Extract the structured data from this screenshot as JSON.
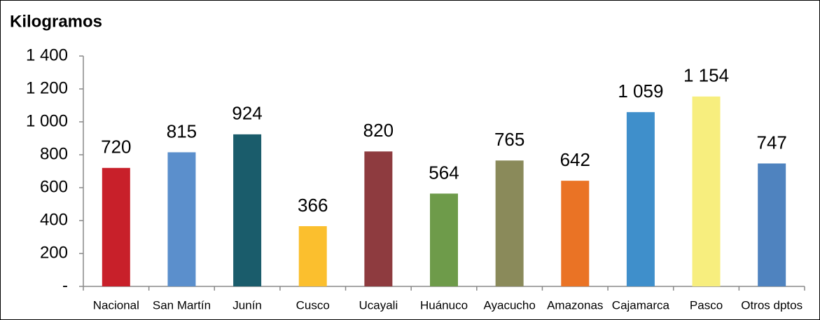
{
  "chart_data": {
    "type": "bar",
    "title": "Kilogramos",
    "categories": [
      "Nacional",
      "San Martín",
      "Junín",
      "Cusco",
      "Ucayali",
      "Huánuco",
      "Ayacucho",
      "Amazonas",
      "Cajamarca",
      "Pasco",
      "Otros dptos"
    ],
    "values": [
      720,
      815,
      924,
      366,
      820,
      564,
      765,
      642,
      1059,
      1154,
      747
    ],
    "value_labels": [
      "720",
      "815",
      "924",
      "366",
      "820",
      "564",
      "765",
      "642",
      "1 059",
      "1 154",
      "747"
    ],
    "colors": [
      "#c8202a",
      "#5b8fcc",
      "#1a5c6b",
      "#fbbf2e",
      "#8e3b3f",
      "#6e9b4a",
      "#8a8a5a",
      "#ea7325",
      "#3f8fcb",
      "#f7ee7e",
      "#4f83bf"
    ],
    "ylim": [
      0,
      1400
    ],
    "yticks": [
      {
        "value": 0,
        "label": "-"
      },
      200,
      400,
      600,
      800,
      {
        "value": 1000,
        "label": "1 000"
      },
      {
        "value": 1200,
        "label": "1 200"
      },
      {
        "value": 1400,
        "label": "1 400"
      }
    ],
    "grid": false
  }
}
